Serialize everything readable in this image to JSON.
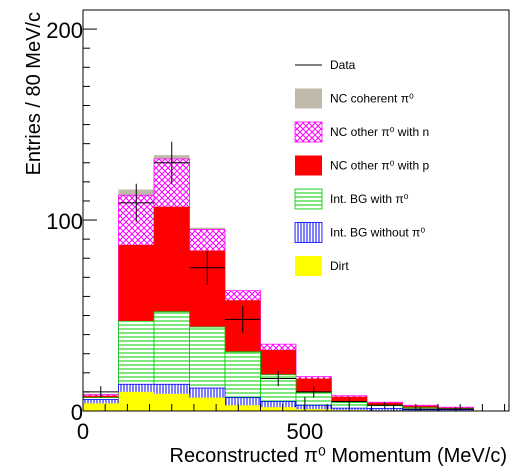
{
  "chart_data": {
    "type": "bar",
    "stacked": true,
    "histogram": true,
    "xlabel": "Reconstructed π⁰ Momentum (MeV/c)",
    "ylabel": "Entries / 80 MeV/c",
    "xlim": [
      0,
      960
    ],
    "ylim": [
      0,
      210
    ],
    "xticks": [
      0,
      500
    ],
    "yticks": [
      0,
      100,
      200
    ],
    "bin_edges": [
      0,
      80,
      160,
      240,
      320,
      400,
      480,
      560,
      640,
      720,
      800,
      880,
      960
    ],
    "legend_position": "top-right",
    "series": [
      {
        "name": "Dirt",
        "color": "#ffff00",
        "pattern": "solid",
        "values": [
          4,
          10,
          9,
          7,
          3,
          2,
          1,
          0.5,
          0.3,
          0.2,
          0.2,
          0
        ]
      },
      {
        "name": "Int. BG without π⁰",
        "color": "#0000ff",
        "pattern": "vertical",
        "values": [
          2,
          4,
          5,
          5,
          4,
          3,
          2,
          1,
          1,
          0.5,
          0.5,
          0
        ]
      },
      {
        "name": "Int. BG with π⁰",
        "color": "#00cc00",
        "pattern": "horizontal",
        "values": [
          1,
          33,
          38,
          32,
          24,
          14,
          7,
          3,
          1.5,
          1,
          0.5,
          0
        ]
      },
      {
        "name": "NC other π⁰ with p",
        "color": "#ff0000",
        "pattern": "solid",
        "values": [
          1,
          40,
          55,
          40,
          27,
          13,
          7,
          3,
          1.5,
          1,
          0.5,
          0
        ]
      },
      {
        "name": "NC other π⁰ with n",
        "color": "#ff00ff",
        "pattern": "crosshatch",
        "values": [
          0.5,
          26,
          25,
          11,
          5,
          3,
          1,
          0.5,
          0.3,
          0.3,
          0.3,
          0
        ]
      },
      {
        "name": "NC coherent π⁰",
        "color": "#c0b8a8",
        "pattern": "solid",
        "values": [
          0.5,
          3,
          2,
          1,
          0,
          0,
          0,
          0,
          0,
          0,
          0,
          0
        ]
      }
    ],
    "data": {
      "name": "Data",
      "x": [
        40,
        120,
        200,
        280,
        360,
        440,
        520,
        600,
        680,
        760,
        840
      ],
      "y": [
        10,
        109,
        130,
        75,
        48,
        17,
        10,
        5,
        3,
        1,
        1
      ],
      "yerr": [
        3,
        10,
        11,
        9,
        7,
        4,
        3,
        2,
        1.7,
        1,
        1
      ]
    }
  },
  "legend_entries": [
    {
      "text": "Data"
    },
    {
      "text": "NC coherent  π⁰"
    },
    {
      "text": "NC other  π⁰ with n"
    },
    {
      "text": "NC other  π⁰ with p"
    },
    {
      "text": "Int. BG with  π⁰"
    },
    {
      "text": "Int. BG without  π⁰"
    },
    {
      "text": "Dirt"
    }
  ]
}
